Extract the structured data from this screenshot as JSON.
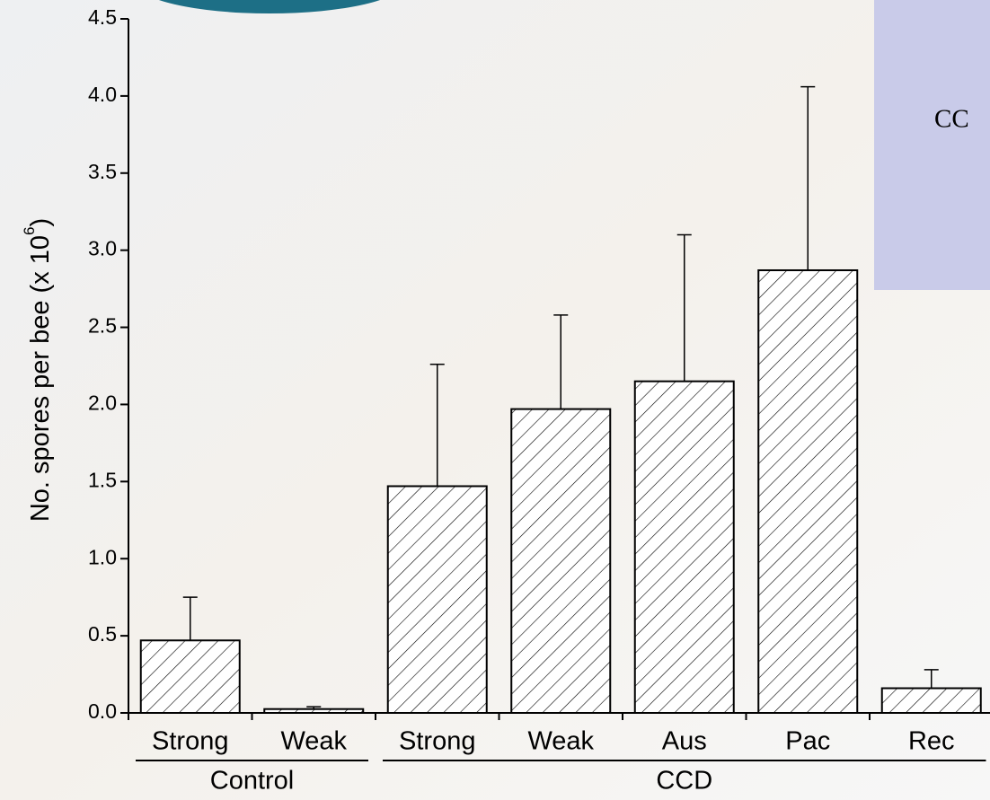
{
  "chart_data": {
    "type": "bar",
    "annotation": "CC",
    "ylabel": [
      "No. spores per bee (x 10",
      "6",
      ")"
    ],
    "categories": [
      "Strong",
      "Weak",
      "Strong",
      "Weak",
      "Aus",
      "Pac",
      "Rec"
    ],
    "groups": [
      {
        "name": "Control",
        "count": 2
      },
      {
        "name": "CCD",
        "count": 5
      }
    ],
    "values": [
      0.47,
      0.025,
      1.47,
      1.97,
      2.15,
      2.87,
      0.16
    ],
    "errors": [
      0.28,
      0.015,
      0.79,
      0.61,
      0.95,
      1.19,
      0.12
    ],
    "ylim": [
      0,
      4.5
    ],
    "yticks": [
      {
        "value": 0,
        "label": "0.0"
      },
      0.5,
      {
        "value": 1,
        "label": "1.0"
      },
      1.5,
      {
        "value": 2,
        "label": "2.0"
      },
      2.5,
      {
        "value": 3,
        "label": "3.0"
      },
      3.5,
      {
        "value": 4,
        "label": "4.0"
      },
      4.5
    ],
    "hatch": true
  }
}
